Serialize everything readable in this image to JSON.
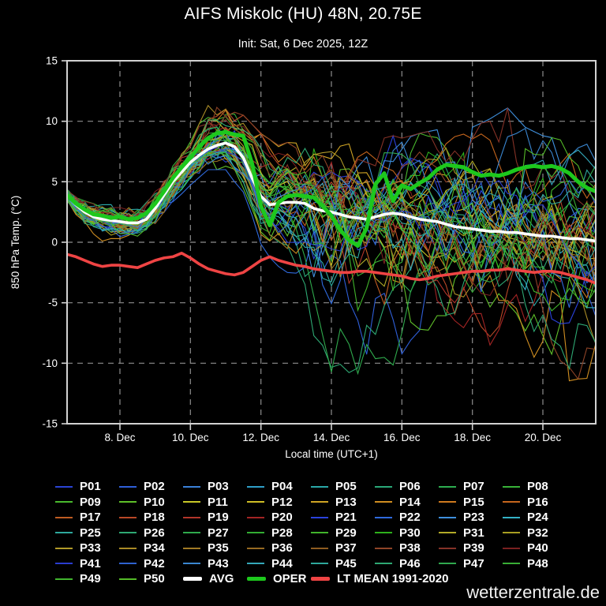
{
  "watermark": "wetterzentrale.de",
  "chart_data": {
    "type": "line",
    "title": "AIFS Miskolc (HU) 48N, 20.75E",
    "subtitle": "Init: Sat, 6 Dec 2025, 12Z",
    "xlabel": "Local time (UTC+1)",
    "ylabel": "850 hPa Temp. (°C)",
    "ylim": [
      -15,
      15
    ],
    "grid": "dashed-gray",
    "background": "#000000",
    "y_ticks": {
      "values": [
        15,
        10,
        5,
        0,
        -5,
        -10,
        -15
      ],
      "labels": [
        "15",
        "10",
        "5",
        "0",
        "-5",
        "-10",
        "-15"
      ]
    },
    "x_axis": {
      "days_total": 15,
      "tick_days": [
        1.5,
        3.5,
        5.5,
        7.5,
        9.5,
        11.5,
        13.5
      ],
      "tick_labels": [
        "8. Dec",
        "10. Dec",
        "12. Dec",
        "14. Dec",
        "16. Dec",
        "18. Dec",
        "20. Dec"
      ]
    },
    "series": [
      {
        "name": "AVG",
        "color": "#ffffff",
        "width": 3.6,
        "step_days": 0.25,
        "values": [
          3.9,
          3.1,
          2.5,
          2.1,
          1.9,
          1.8,
          1.7,
          1.6,
          1.6,
          1.9,
          2.8,
          3.9,
          5.0,
          5.8,
          6.6,
          7.2,
          7.7,
          8.0,
          8.2,
          7.9,
          7.0,
          5.3,
          3.8,
          3.1,
          3.2,
          3.3,
          3.3,
          3.2,
          2.8,
          2.6,
          2.5,
          2.3,
          2.1,
          2.0,
          1.9,
          2.1,
          2.3,
          2.4,
          2.3,
          2.1,
          1.9,
          1.8,
          1.7,
          1.5,
          1.3,
          1.2,
          1.1,
          1.0,
          0.9,
          0.9,
          0.8,
          0.8,
          0.7,
          0.6,
          0.5,
          0.5,
          0.4,
          0.3,
          0.3,
          0.2,
          0.1
        ]
      },
      {
        "name": "OPER",
        "color": "#1dc81d",
        "width": 5,
        "step_days": 0.25,
        "values": [
          3.9,
          3.2,
          2.7,
          2.3,
          2.2,
          2.0,
          2.1,
          1.9,
          2.0,
          2.4,
          3.2,
          4.2,
          5.3,
          6.2,
          7.0,
          7.9,
          8.6,
          9.0,
          9.1,
          8.9,
          8.8,
          6.5,
          3.0,
          1.4,
          3.3,
          3.8,
          3.9,
          3.8,
          3.7,
          3.0,
          2.2,
          1.0,
          0.2,
          -0.3,
          1.2,
          4.8,
          5.7,
          3.4,
          4.7,
          4.4,
          4.9,
          5.3,
          6.0,
          6.4,
          6.3,
          6.2,
          5.8,
          5.5,
          5.6,
          5.5,
          5.7,
          6.0,
          6.2,
          6.3,
          6.2,
          6.3,
          6.1,
          5.7,
          5.0,
          4.5,
          4.2
        ]
      },
      {
        "name": "LT MEAN 1991-2020",
        "color": "#ef4444",
        "width": 3.6,
        "step_days": 0.25,
        "values": [
          -1.0,
          -1.2,
          -1.5,
          -1.8,
          -2.0,
          -1.9,
          -1.9,
          -2.0,
          -2.1,
          -1.8,
          -1.5,
          -1.3,
          -1.2,
          -0.9,
          -1.3,
          -1.8,
          -2.2,
          -2.4,
          -2.6,
          -2.7,
          -2.5,
          -2.0,
          -1.5,
          -1.2,
          -1.5,
          -1.7,
          -1.9,
          -2.0,
          -2.2,
          -2.3,
          -2.4,
          -2.5,
          -2.5,
          -2.4,
          -2.4,
          -2.5,
          -2.6,
          -2.7,
          -2.8,
          -3.0,
          -3.1,
          -3.0,
          -2.8,
          -2.7,
          -2.6,
          -2.5,
          -2.4,
          -2.4,
          -2.3,
          -2.3,
          -2.2,
          -2.3,
          -2.4,
          -2.5,
          -2.4,
          -2.4,
          -2.5,
          -2.7,
          -2.9,
          -3.1,
          -3.4
        ]
      }
    ],
    "ensemble": {
      "count": 50,
      "step_days": 0.25,
      "line_width": 1.1,
      "seed": 20251206,
      "envelope_step_days": 0.5,
      "envelope_top": [
        4.4,
        3.8,
        3.4,
        3.2,
        3.4,
        4.5,
        6.3,
        8.3,
        11.3,
        11.0,
        10.5,
        9.0,
        8.0,
        8.5,
        9.3,
        9.0,
        9.5,
        9.7,
        9.0,
        8.6,
        9.0,
        9.3,
        9.3,
        9.5,
        10.2,
        11.1,
        9.5,
        8.8,
        8.5,
        8.3,
        8.2
      ],
      "envelope_bottom": [
        3.4,
        1.2,
        0.1,
        0.3,
        0.5,
        1.4,
        3.0,
        4.5,
        6.0,
        6.0,
        4.0,
        -0.5,
        -2.0,
        -3.0,
        -9.0,
        -11.5,
        -11.8,
        -10.5,
        -9.8,
        -10.5,
        -8.5,
        -7.5,
        -8.0,
        -9.7,
        -8.5,
        -8.0,
        -9.0,
        -10.0,
        -11.6,
        -11.3,
        -11.2
      ]
    },
    "legend": {
      "columns": 8,
      "entries": [
        {
          "label": "P01",
          "color": "#2a44d4"
        },
        {
          "label": "P02",
          "color": "#2f5fd8"
        },
        {
          "label": "P03",
          "color": "#3a80d8"
        },
        {
          "label": "P04",
          "color": "#2f9fc8"
        },
        {
          "label": "P05",
          "color": "#2aa8a8"
        },
        {
          "label": "P06",
          "color": "#2aa878"
        },
        {
          "label": "P07",
          "color": "#2dad50"
        },
        {
          "label": "P08",
          "color": "#38b238"
        },
        {
          "label": "P09",
          "color": "#49b92e"
        },
        {
          "label": "P10",
          "color": "#5fc029"
        },
        {
          "label": "P11",
          "color": "#c8c828"
        },
        {
          "label": "P12",
          "color": "#cfbd26"
        },
        {
          "label": "P13",
          "color": "#cfa424"
        },
        {
          "label": "P14",
          "color": "#d08e21"
        },
        {
          "label": "P15",
          "color": "#cf7a1f"
        },
        {
          "label": "P16",
          "color": "#c6661d"
        },
        {
          "label": "P17",
          "color": "#bf5c22"
        },
        {
          "label": "P18",
          "color": "#b94827"
        },
        {
          "label": "P19",
          "color": "#b2352a"
        },
        {
          "label": "P20",
          "color": "#a22424"
        },
        {
          "label": "P21",
          "color": "#2a42dd"
        },
        {
          "label": "P22",
          "color": "#2f6add"
        },
        {
          "label": "P23",
          "color": "#3f90dd"
        },
        {
          "label": "P24",
          "color": "#34b2c6"
        },
        {
          "label": "P25",
          "color": "#2ea89d"
        },
        {
          "label": "P26",
          "color": "#2ea873"
        },
        {
          "label": "P27",
          "color": "#2fa94c"
        },
        {
          "label": "P28",
          "color": "#33ad33"
        },
        {
          "label": "P29",
          "color": "#41b42b"
        },
        {
          "label": "P30",
          "color": "#2eb01c"
        },
        {
          "label": "P31",
          "color": "#b2aa28"
        },
        {
          "label": "P32",
          "color": "#a89e22"
        },
        {
          "label": "P33",
          "color": "#b19a28"
        },
        {
          "label": "P34",
          "color": "#a98a26"
        },
        {
          "label": "P35",
          "color": "#a17a25"
        },
        {
          "label": "P36",
          "color": "#976a22"
        },
        {
          "label": "P37",
          "color": "#8e5c20"
        },
        {
          "label": "P38",
          "color": "#8f4427"
        },
        {
          "label": "P39",
          "color": "#853227"
        },
        {
          "label": "P40",
          "color": "#7a2020"
        },
        {
          "label": "P41",
          "color": "#2a3dcf"
        },
        {
          "label": "P42",
          "color": "#2f62cf"
        },
        {
          "label": "P43",
          "color": "#3a86d0"
        },
        {
          "label": "P44",
          "color": "#34a8ba"
        },
        {
          "label": "P45",
          "color": "#2ea89b"
        },
        {
          "label": "P46",
          "color": "#2ea873"
        },
        {
          "label": "P47",
          "color": "#30a84e"
        },
        {
          "label": "P48",
          "color": "#39ae35"
        },
        {
          "label": "P49",
          "color": "#41b52e"
        },
        {
          "label": "P50",
          "color": "#55bb28"
        },
        {
          "label": "AVG",
          "color": "#ffffff",
          "thick": true
        },
        {
          "label": "OPER",
          "color": "#1dc81d",
          "thick": true
        },
        {
          "label": "LT MEAN 1991-2020",
          "color": "#ef4444",
          "thick": true,
          "wide": true
        }
      ]
    }
  }
}
